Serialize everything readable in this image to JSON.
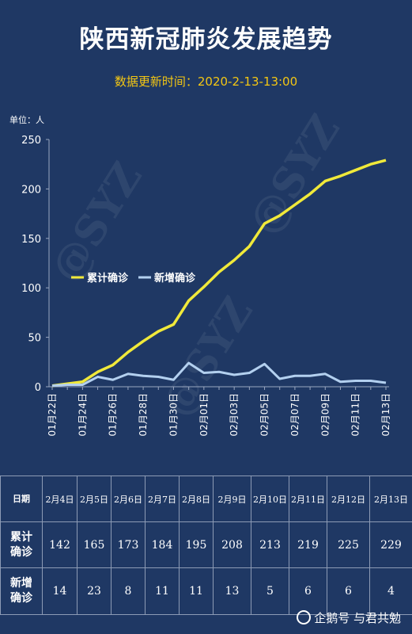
{
  "header": {
    "title": "陕西新冠肺炎发展趋势",
    "subtitle": "数据更新时间：2020-2-13-13:00",
    "unit_label": "单位：人"
  },
  "colors": {
    "background": "#1f3864",
    "cumulative": "#f0e93a",
    "new_cases": "#b3d0ef",
    "subtitle": "#f3c613"
  },
  "chart_data": {
    "type": "line",
    "x": [
      "01月22日",
      "01月23日",
      "01月24日",
      "01月25日",
      "01月26日",
      "01月27日",
      "01月28日",
      "01月29日",
      "01月30日",
      "01月31日",
      "02月01日",
      "02月02日",
      "02月03日",
      "02月04日",
      "02月05日",
      "02月06日",
      "02月07日",
      "02月08日",
      "02月09日",
      "02月10日",
      "02月11日",
      "02月12日",
      "02月13日"
    ],
    "x_tick_labels": [
      "01月22日",
      "01月24日",
      "01月26日",
      "01月28日",
      "01月30日",
      "02月01日",
      "02月03日",
      "02月05日",
      "02月07日",
      "02月09日",
      "02月11日",
      "02月13日"
    ],
    "series": [
      {
        "name": "累计确诊",
        "values": [
          1,
          3,
          5,
          15,
          22,
          35,
          46,
          56,
          63,
          87,
          101,
          116,
          128,
          142,
          165,
          173,
          184,
          195,
          208,
          213,
          219,
          225,
          229
        ]
      },
      {
        "name": "新增确诊",
        "values": [
          1,
          2,
          2,
          10,
          7,
          13,
          11,
          10,
          7,
          24,
          14,
          15,
          12,
          14,
          23,
          8,
          11,
          11,
          13,
          5,
          6,
          6,
          4
        ]
      }
    ],
    "ylim": [
      0,
      250
    ],
    "yticks": [
      0,
      50,
      100,
      150,
      200,
      250
    ],
    "legend_position": "center-left",
    "grid": false
  },
  "table": {
    "header_date": "日期",
    "header_cumulative": "累计\n确诊",
    "header_new": "新增\n确诊",
    "dates": [
      "2月4日",
      "2月5日",
      "2月6日",
      "2月7日",
      "2月8日",
      "2月9日",
      "2月10日",
      "2月11日",
      "2月12日",
      "2月13日"
    ],
    "cumulative": [
      142,
      165,
      173,
      184,
      195,
      208,
      213,
      219,
      225,
      229
    ],
    "new": [
      14,
      23,
      8,
      11,
      11,
      13,
      5,
      6,
      6,
      4
    ]
  },
  "watermark": "@SYZ",
  "credit": "企鹅号 与君共勉"
}
